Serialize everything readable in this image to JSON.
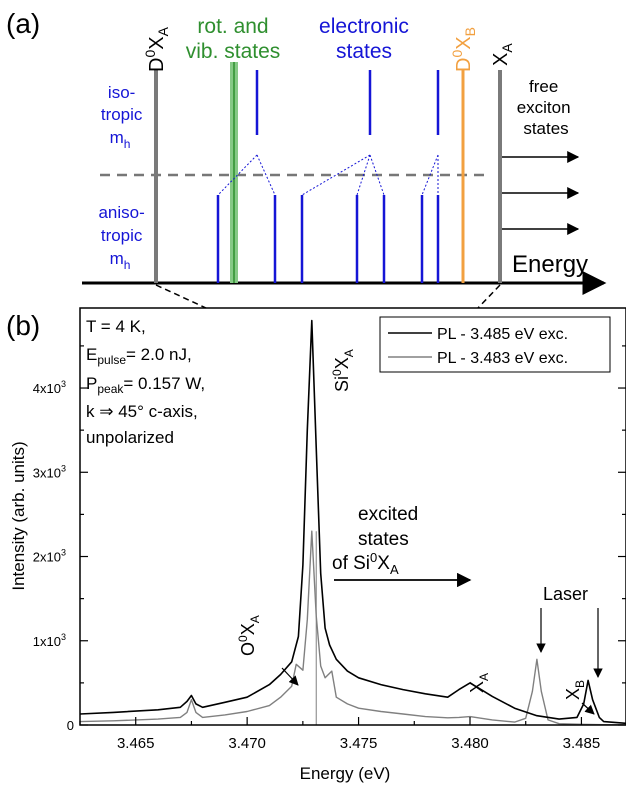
{
  "colors": {
    "black": "#000000",
    "blue": "#1515d6",
    "green": "#2f8f2f",
    "orange": "#f2a040",
    "gray": "#7a7a7a",
    "lightgreen": "#86c986",
    "dashgray": "#777777",
    "pl1": "#000000",
    "pl2": "#808080"
  },
  "panel_a": {
    "tag": "(a)",
    "d0xa": {
      "base": "D",
      "sup": "0",
      "mid": "X",
      "sub": "A"
    },
    "d0xb": {
      "base": "D",
      "sup": "0",
      "mid": "X",
      "sub": "B"
    },
    "xa": {
      "base": "X",
      "sub": "A"
    },
    "rot_line1": "rot. and",
    "rot_line2": "vib. states",
    "elec_line1": "electronic",
    "elec_line2": "states",
    "iso": [
      "iso-",
      "tropic",
      "m"
    ],
    "iso_sub": "h",
    "aniso": [
      "aniso-",
      "tropic",
      "m"
    ],
    "aniso_sub": "h",
    "free": [
      "free",
      "exciton",
      "states"
    ],
    "energy": "Energy"
  },
  "panel_b": {
    "tag": "(b)",
    "conditions": {
      "t": "T = 4 K,",
      "e_base": "E",
      "e_sub": "pulse",
      "e_val": "= 2.0 nJ,",
      "p_base": "P",
      "p_sub": "peak",
      "p_val": "= 0.157 W,",
      "k": "k ⇒ 45° c-axis,",
      "pol": "unpolarized"
    },
    "peak_si": {
      "base": "Si",
      "sup": "0",
      "mid": "X",
      "sub": "A"
    },
    "peak_o": {
      "base": "O",
      "sup": "0",
      "mid": "X",
      "sub": "A"
    },
    "peak_xa": {
      "base": "X",
      "sub": "A"
    },
    "peak_xb": {
      "base": "X",
      "sub": "B"
    },
    "laser": "Laser",
    "excited": {
      "l1": "excited",
      "l2": "states",
      "l3_base": "of Si",
      "l3_sup": "0",
      "l3_mid": "X",
      "l3_sub": "A"
    }
  },
  "chart_data": {
    "type": "line",
    "xlabel": "Energy (eV)",
    "ylabel": "Intensity (arb. units)",
    "xlim": [
      3.4625,
      3.487
    ],
    "ylim": [
      0,
      4950
    ],
    "xticks": [
      3.465,
      3.47,
      3.475,
      3.48,
      3.485
    ],
    "xtick_labels": [
      "3.465",
      "3.470",
      "3.475",
      "3.480",
      "3.485"
    ],
    "yticks": [
      0,
      1000,
      2000,
      3000,
      4000
    ],
    "ytick_labels": [
      "0",
      "1x10",
      "2x10",
      "3x10",
      "4x10"
    ],
    "ytick_exp": "3",
    "legend_position": "top-right",
    "series": [
      {
        "name": "PL - 3.485 eV exc.",
        "x": [
          3.4625,
          3.464,
          3.466,
          3.467,
          3.4673,
          3.4675,
          3.4677,
          3.468,
          3.469,
          3.47,
          3.471,
          3.4715,
          3.472,
          3.4723,
          3.4725,
          3.4727,
          3.4729,
          3.4731,
          3.4733,
          3.4735,
          3.4737,
          3.474,
          3.4745,
          3.475,
          3.476,
          3.477,
          3.478,
          3.479,
          3.4795,
          3.48,
          3.4805,
          3.481,
          3.482,
          3.483,
          3.484,
          3.4848,
          3.4851,
          3.4853,
          3.4855,
          3.4858,
          3.486,
          3.487
        ],
        "y": [
          130,
          150,
          180,
          210,
          280,
          350,
          250,
          210,
          270,
          330,
          480,
          600,
          750,
          1050,
          1900,
          3500,
          4800,
          3300,
          1800,
          1150,
          950,
          780,
          640,
          560,
          480,
          420,
          370,
          330,
          420,
          500,
          420,
          340,
          200,
          110,
          70,
          90,
          250,
          530,
          300,
          90,
          40,
          20
        ]
      },
      {
        "name": "PL - 3.483 eV exc.",
        "x": [
          3.4625,
          3.464,
          3.466,
          3.467,
          3.4673,
          3.4675,
          3.4677,
          3.468,
          3.469,
          3.47,
          3.471,
          3.4715,
          3.472,
          3.4722,
          3.4725,
          3.4727,
          3.4729,
          3.4731,
          3.4733,
          3.4735,
          3.4738,
          3.474,
          3.4745,
          3.475,
          3.476,
          3.477,
          3.478,
          3.479,
          3.4795,
          3.48,
          3.481,
          3.482,
          3.4825,
          3.4828,
          3.483,
          3.4832,
          3.4835,
          3.484,
          3.485,
          3.486,
          3.487
        ],
        "y": [
          40,
          50,
          70,
          90,
          150,
          300,
          150,
          90,
          120,
          160,
          230,
          330,
          460,
          720,
          650,
          1250,
          2300,
          1300,
          700,
          560,
          640,
          330,
          250,
          200,
          160,
          130,
          100,
          85,
          90,
          100,
          60,
          35,
          80,
          400,
          780,
          400,
          60,
          15,
          8,
          4,
          2
        ]
      }
    ],
    "vline_x": 3.4731
  }
}
